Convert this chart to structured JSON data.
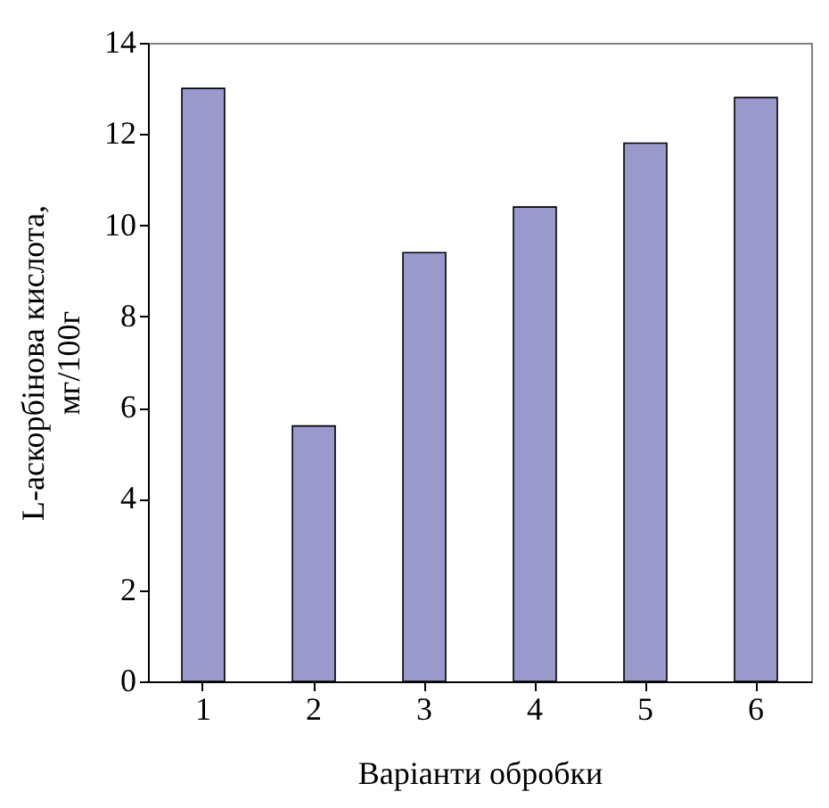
{
  "chart_data": {
    "type": "bar",
    "xlabel": "Варіанти обробки",
    "ylabel": "L-аскорбінова кислота,\nмг/100г",
    "categories": [
      "1",
      "2",
      "3",
      "4",
      "5",
      "6"
    ],
    "values": [
      13,
      5.6,
      9.4,
      10.4,
      11.8,
      12.8
    ],
    "color": "#9999cc",
    "ylim": [
      0,
      14
    ],
    "yticks": [
      0,
      2,
      4,
      6,
      8,
      10,
      12,
      14
    ],
    "grid": false
  }
}
